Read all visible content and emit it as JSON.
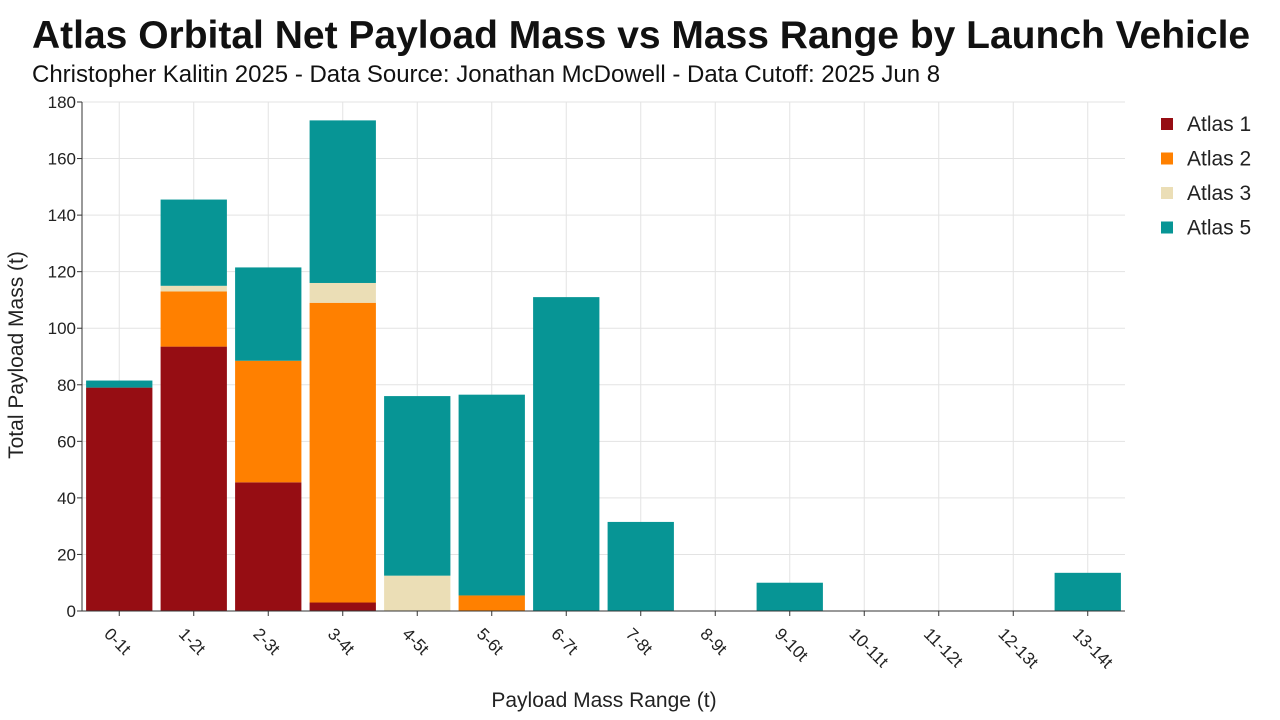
{
  "chart_data": {
    "type": "bar",
    "stacked": true,
    "title": "Atlas Orbital Net Payload Mass vs Mass Range by Launch Vehicle",
    "subtitle": "Christopher Kalitin 2025 - Data Source: Jonathan McDowell - Data Cutoff: 2025 Jun 8",
    "xlabel": "Payload Mass Range (t)",
    "ylabel": "Total Payload Mass (t)",
    "ylim": [
      0,
      180
    ],
    "yticks": [
      0,
      20,
      40,
      60,
      80,
      100,
      120,
      140,
      160,
      180
    ],
    "grid": true,
    "legend_position": "top-right",
    "categories": [
      "0-1t",
      "1-2t",
      "2-3t",
      "3-4t",
      "4-5t",
      "5-6t",
      "6-7t",
      "7-8t",
      "8-9t",
      "9-10t",
      "10-11t",
      "11-12t",
      "12-13t",
      "13-14t"
    ],
    "series": [
      {
        "name": "Atlas 1",
        "color": "#960d13",
        "values": [
          79,
          93.5,
          45.5,
          3,
          0,
          0,
          0,
          0,
          0,
          0,
          0,
          0,
          0,
          0
        ]
      },
      {
        "name": "Atlas 2",
        "color": "#ff8000",
        "values": [
          0,
          19.5,
          43,
          106,
          0,
          5.5,
          0,
          0,
          0,
          0,
          0,
          0,
          0,
          0
        ]
      },
      {
        "name": "Atlas 3",
        "color": "#ebdeb6",
        "values": [
          0,
          2,
          0,
          7,
          12.5,
          0,
          0,
          0,
          0,
          0,
          0,
          0,
          0,
          0
        ]
      },
      {
        "name": "Atlas 5",
        "color": "#079595",
        "values": [
          2.5,
          30.5,
          33,
          57.5,
          63.5,
          71,
          111,
          31.5,
          0,
          10,
          0,
          0,
          0,
          13.5
        ]
      }
    ]
  }
}
